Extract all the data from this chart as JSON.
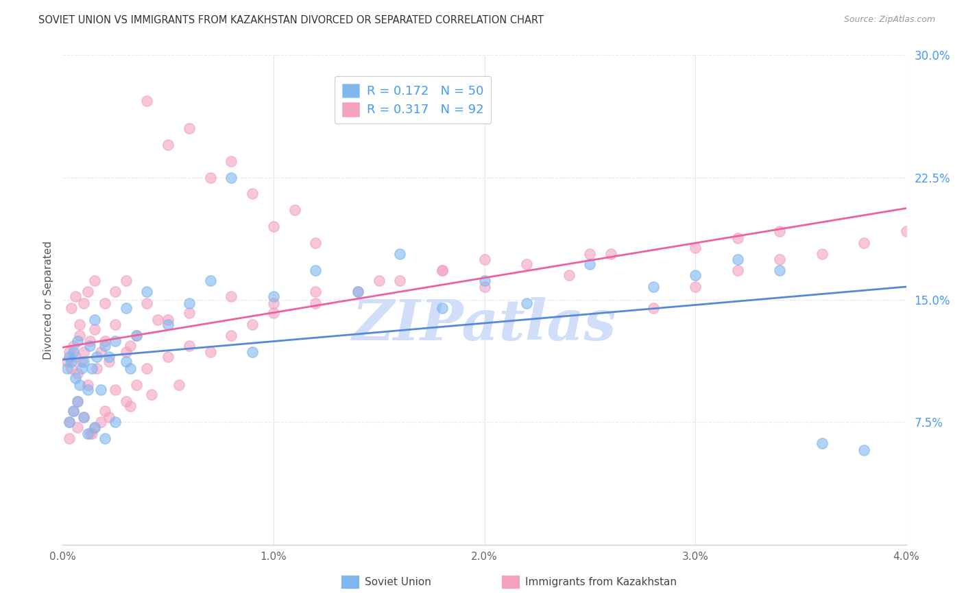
{
  "title": "SOVIET UNION VS IMMIGRANTS FROM KAZAKHSTAN DIVORCED OR SEPARATED CORRELATION CHART",
  "source": "Source: ZipAtlas.com",
  "ylabel_label": "Divorced or Separated",
  "soviet_R": 0.172,
  "soviet_N": 50,
  "kazakh_R": 0.317,
  "kazakh_N": 92,
  "soviet_color": "#7EB6F0",
  "kazakh_color": "#F4A0C0",
  "soviet_line_color": "#5588DD",
  "kazakh_line_color": "#F060A0",
  "watermark": "ZIPatlas",
  "watermark_color": "#D0DEFA",
  "background_color": "#FFFFFF",
  "grid_color": "#E8E8E8",
  "right_axis_color": "#4499FF",
  "tick_label_color": "#666666",
  "title_color": "#333333",
  "source_color": "#999999",
  "xmin": 0.0,
  "xmax": 0.04,
  "ymin": 0.0,
  "ymax": 0.3,
  "ytick_vals": [
    0.075,
    0.15,
    0.225,
    0.3
  ],
  "xtick_vals": [
    0.0,
    0.01,
    0.02,
    0.03,
    0.04
  ],
  "soviet_points_x": [
    0.0002,
    0.0003,
    0.0004,
    0.0005,
    0.0006,
    0.0007,
    0.0008,
    0.0009,
    0.001,
    0.0012,
    0.0013,
    0.0014,
    0.0015,
    0.0016,
    0.0018,
    0.002,
    0.0022,
    0.0025,
    0.003,
    0.0032,
    0.0003,
    0.0005,
    0.0007,
    0.001,
    0.0012,
    0.0015,
    0.002,
    0.0025,
    0.003,
    0.0035,
    0.004,
    0.005,
    0.006,
    0.007,
    0.008,
    0.009,
    0.01,
    0.012,
    0.014,
    0.016,
    0.018,
    0.02,
    0.022,
    0.025,
    0.028,
    0.03,
    0.032,
    0.034,
    0.036,
    0.038
  ],
  "soviet_points_y": [
    0.108,
    0.115,
    0.112,
    0.118,
    0.102,
    0.125,
    0.098,
    0.108,
    0.112,
    0.095,
    0.122,
    0.108,
    0.138,
    0.115,
    0.095,
    0.122,
    0.115,
    0.125,
    0.112,
    0.108,
    0.075,
    0.082,
    0.088,
    0.078,
    0.068,
    0.072,
    0.065,
    0.075,
    0.145,
    0.128,
    0.155,
    0.135,
    0.148,
    0.162,
    0.225,
    0.118,
    0.152,
    0.168,
    0.155,
    0.178,
    0.145,
    0.162,
    0.148,
    0.172,
    0.158,
    0.165,
    0.175,
    0.168,
    0.062,
    0.058
  ],
  "kazakh_points_x": [
    0.0002,
    0.0003,
    0.0004,
    0.0005,
    0.0006,
    0.0007,
    0.0008,
    0.0009,
    0.001,
    0.0012,
    0.0013,
    0.0015,
    0.0016,
    0.0018,
    0.002,
    0.0022,
    0.0025,
    0.003,
    0.0032,
    0.0035,
    0.004,
    0.0045,
    0.005,
    0.006,
    0.007,
    0.008,
    0.009,
    0.01,
    0.011,
    0.012,
    0.0003,
    0.0005,
    0.0007,
    0.001,
    0.0013,
    0.0015,
    0.0018,
    0.002,
    0.0025,
    0.003,
    0.0035,
    0.004,
    0.005,
    0.006,
    0.007,
    0.008,
    0.009,
    0.01,
    0.012,
    0.014,
    0.016,
    0.018,
    0.02,
    0.022,
    0.024,
    0.026,
    0.028,
    0.03,
    0.032,
    0.034,
    0.0004,
    0.0006,
    0.0008,
    0.001,
    0.0012,
    0.0015,
    0.002,
    0.0025,
    0.003,
    0.004,
    0.005,
    0.006,
    0.008,
    0.01,
    0.012,
    0.015,
    0.018,
    0.02,
    0.025,
    0.03,
    0.032,
    0.034,
    0.036,
    0.038,
    0.04,
    0.0003,
    0.0007,
    0.0014,
    0.0022,
    0.0032,
    0.0042,
    0.0055
  ],
  "kazakh_points_y": [
    0.112,
    0.118,
    0.108,
    0.122,
    0.115,
    0.105,
    0.128,
    0.112,
    0.118,
    0.098,
    0.125,
    0.132,
    0.108,
    0.118,
    0.125,
    0.112,
    0.135,
    0.118,
    0.122,
    0.128,
    0.272,
    0.138,
    0.245,
    0.255,
    0.225,
    0.235,
    0.215,
    0.195,
    0.205,
    0.185,
    0.075,
    0.082,
    0.088,
    0.078,
    0.068,
    0.072,
    0.075,
    0.082,
    0.095,
    0.088,
    0.098,
    0.108,
    0.115,
    0.122,
    0.118,
    0.128,
    0.135,
    0.142,
    0.148,
    0.155,
    0.162,
    0.168,
    0.158,
    0.172,
    0.165,
    0.178,
    0.145,
    0.158,
    0.168,
    0.175,
    0.145,
    0.152,
    0.135,
    0.148,
    0.155,
    0.162,
    0.148,
    0.155,
    0.162,
    0.148,
    0.138,
    0.142,
    0.152,
    0.148,
    0.155,
    0.162,
    0.168,
    0.175,
    0.178,
    0.182,
    0.188,
    0.192,
    0.178,
    0.185,
    0.192,
    0.065,
    0.072,
    0.068,
    0.078,
    0.085,
    0.092,
    0.098
  ]
}
